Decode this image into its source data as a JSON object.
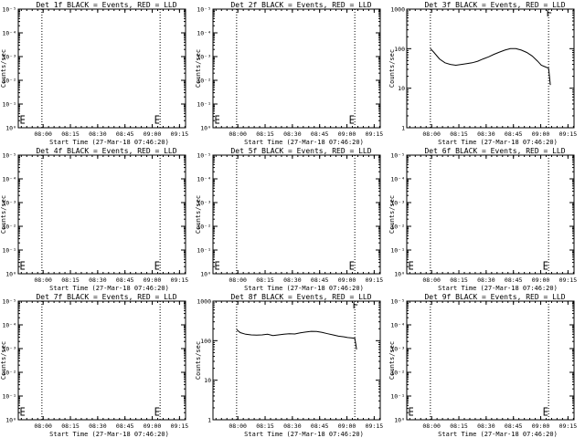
{
  "figure": {
    "background": "#ffffff",
    "foreground": "#000000"
  },
  "chart_data": [
    {
      "type": "line",
      "title": "Det 1f BLACK = Events, RED = LLD",
      "xlabel": "Start Time (27-Mar-18 07:46:20)",
      "ylabel": "Counts/sec",
      "x_ticks": [
        "08:00",
        "08:15",
        "08:30",
        "08:45",
        "09:00",
        "09:15"
      ],
      "y_ticks": [
        "10⁰",
        "10⁻¹",
        "10⁻²",
        "10⁻³",
        "10⁻⁴",
        "10⁻⁵"
      ],
      "y_scale": "log",
      "ylim": [
        1,
        1e-05
      ],
      "x_minutes_range": [
        0,
        92
      ],
      "vlines": [
        13,
        78
      ],
      "markers_x": [
        0,
        74
      ],
      "series": []
    },
    {
      "type": "line",
      "title": "Det 2f BLACK = Events, RED = LLD",
      "xlabel": "Start Time (27-Mar-18 07:46:20)",
      "ylabel": "Counts/sec",
      "x_ticks": [
        "08:00",
        "08:15",
        "08:30",
        "08:45",
        "09:00",
        "09:15"
      ],
      "y_ticks": [
        "10⁰",
        "10⁻¹",
        "10⁻²",
        "10⁻³",
        "10⁻⁴",
        "10⁻⁵"
      ],
      "y_scale": "log",
      "ylim": [
        1,
        1e-05
      ],
      "x_minutes_range": [
        0,
        92
      ],
      "vlines": [
        13,
        78
      ],
      "markers_x": [
        0,
        74
      ],
      "series": []
    },
    {
      "type": "line",
      "title": "Det 3f BLACK = Events, RED = LLD",
      "xlabel": "Start Time (27-Mar-18 07:46:20)",
      "ylabel": "Counts/sec",
      "x_ticks": [
        "08:00",
        "08:15",
        "08:30",
        "08:45",
        "09:00",
        "09:15"
      ],
      "y_ticks": [
        "1",
        "10",
        "100",
        "1000"
      ],
      "y_scale": "log",
      "ylim": [
        1,
        1000
      ],
      "x_minutes_range": [
        0,
        92
      ],
      "vlines": [
        13,
        78
      ],
      "markers_x": [],
      "series": [
        {
          "color": "#000000",
          "x": [
            13,
            15,
            18,
            21,
            24,
            27,
            30,
            33,
            36,
            39,
            42,
            45,
            48,
            51,
            54,
            57,
            60,
            63,
            66,
            69,
            72,
            74,
            76,
            78,
            79
          ],
          "y": [
            100,
            80,
            55,
            44,
            40,
            38,
            40,
            42,
            44,
            48,
            55,
            62,
            72,
            82,
            92,
            100,
            100,
            92,
            80,
            65,
            48,
            38,
            35,
            32,
            12
          ]
        }
      ]
    },
    {
      "type": "line",
      "title": "Det 4f BLACK = Events, RED = LLD",
      "xlabel": "Start Time (27-Mar-18 07:46:20)",
      "ylabel": "Counts/sec",
      "x_ticks": [
        "08:00",
        "08:15",
        "08:30",
        "08:45",
        "09:00",
        "09:15"
      ],
      "y_ticks": [
        "10⁰",
        "10⁻¹",
        "10⁻²",
        "10⁻³",
        "10⁻⁴",
        "10⁻⁵"
      ],
      "y_scale": "log",
      "ylim": [
        1,
        1e-05
      ],
      "x_minutes_range": [
        0,
        92
      ],
      "vlines": [
        13,
        78
      ],
      "markers_x": [
        0,
        74
      ],
      "series": []
    },
    {
      "type": "line",
      "title": "Det 5f BLACK = Events, RED = LLD",
      "xlabel": "Start Time (27-Mar-18 07:46:20)",
      "ylabel": "Counts/sec",
      "x_ticks": [
        "08:00",
        "08:15",
        "08:30",
        "08:45",
        "09:00",
        "09:15"
      ],
      "y_ticks": [
        "10⁰",
        "10⁻¹",
        "10⁻²",
        "10⁻³",
        "10⁻⁴",
        "10⁻⁵"
      ],
      "y_scale": "log",
      "ylim": [
        1,
        1e-05
      ],
      "x_minutes_range": [
        0,
        92
      ],
      "vlines": [
        13,
        78
      ],
      "markers_x": [
        0,
        74
      ],
      "series": []
    },
    {
      "type": "line",
      "title": "Det 6f BLACK = Events, RED = LLD",
      "xlabel": "Start Time (27-Mar-18 07:46:20)",
      "ylabel": "Counts/sec",
      "x_ticks": [
        "08:00",
        "08:15",
        "08:30",
        "08:45",
        "09:00",
        "09:15"
      ],
      "y_ticks": [
        "10⁰",
        "10⁻¹",
        "10⁻²",
        "10⁻³",
        "10⁻⁴",
        "10⁻⁵"
      ],
      "y_scale": "log",
      "ylim": [
        1,
        1e-05
      ],
      "x_minutes_range": [
        0,
        92
      ],
      "vlines": [
        13,
        78
      ],
      "markers_x": [
        0,
        74
      ],
      "series": []
    },
    {
      "type": "line",
      "title": "Det 7f BLACK = Events, RED = LLD",
      "xlabel": "Start Time (27-Mar-18 07:46:20)",
      "ylabel": "Counts/sec",
      "x_ticks": [
        "08:00",
        "08:15",
        "08:30",
        "08:45",
        "09:00",
        "09:15"
      ],
      "y_ticks": [
        "10⁰",
        "10⁻¹",
        "10⁻²",
        "10⁻³",
        "10⁻⁴",
        "10⁻⁵"
      ],
      "y_scale": "log",
      "ylim": [
        1,
        1e-05
      ],
      "x_minutes_range": [
        0,
        92
      ],
      "vlines": [
        13,
        78
      ],
      "markers_x": [
        0,
        74
      ],
      "series": []
    },
    {
      "type": "line",
      "title": "Det 8f BLACK = Events, RED = LLD",
      "xlabel": "Start Time (27-Mar-18 07:46:20)",
      "ylabel": "Counts/sec",
      "x_ticks": [
        "08:00",
        "08:15",
        "08:30",
        "08:45",
        "09:00",
        "09:15"
      ],
      "y_ticks": [
        "1",
        "10",
        "100",
        "1000"
      ],
      "y_scale": "log",
      "ylim": [
        1,
        1000
      ],
      "x_minutes_range": [
        0,
        92
      ],
      "vlines": [
        13,
        78
      ],
      "markers_x": [],
      "series": [
        {
          "color": "#000000",
          "x": [
            13,
            15,
            18,
            21,
            24,
            27,
            30,
            33,
            36,
            39,
            42,
            45,
            48,
            51,
            54,
            57,
            60,
            63,
            66,
            69,
            72,
            74,
            76,
            78,
            79
          ],
          "y": [
            190,
            160,
            145,
            140,
            138,
            140,
            145,
            135,
            140,
            145,
            150,
            148,
            158,
            165,
            172,
            170,
            162,
            150,
            140,
            130,
            125,
            120,
            118,
            115,
            60
          ]
        }
      ]
    },
    {
      "type": "line",
      "title": "Det 9f BLACK = Events, RED = LLD",
      "xlabel": "Start Time (27-Mar-18 07:46:20)",
      "ylabel": "Counts/sec",
      "x_ticks": [
        "08:00",
        "08:15",
        "08:30",
        "08:45",
        "09:00",
        "09:15"
      ],
      "y_ticks": [
        "10⁰",
        "10⁻¹",
        "10⁻²",
        "10⁻³",
        "10⁻⁴",
        "10⁻⁵"
      ],
      "y_scale": "log",
      "ylim": [
        1,
        1e-05
      ],
      "x_minutes_range": [
        0,
        92
      ],
      "vlines": [
        13,
        78
      ],
      "markers_x": [
        0,
        74
      ],
      "series": []
    }
  ]
}
